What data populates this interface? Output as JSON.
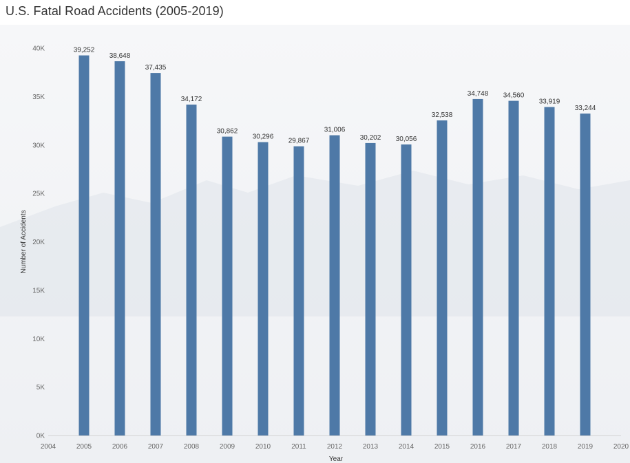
{
  "chart_data": {
    "type": "bar",
    "title": "U.S. Fatal Road Accidents (2005-2019)",
    "xlabel": "Year",
    "ylabel": "Number of Accidents",
    "x": [
      2005,
      2006,
      2007,
      2008,
      2009,
      2010,
      2011,
      2012,
      2013,
      2014,
      2015,
      2016,
      2017,
      2018,
      2019
    ],
    "values": [
      39252,
      38648,
      37435,
      34172,
      30862,
      30296,
      29867,
      31006,
      30202,
      30056,
      32538,
      34748,
      34560,
      33919,
      33244
    ],
    "data_labels": [
      "39,252",
      "38,648",
      "37,435",
      "34,172",
      "30,862",
      "30,296",
      "29,867",
      "31,006",
      "30,202",
      "30,056",
      "32,538",
      "34,748",
      "34,560",
      "33,919",
      "33,244"
    ],
    "xlim": [
      2004,
      2020
    ],
    "ylim": [
      0,
      40000
    ],
    "x_ticks": [
      "2004",
      "2005",
      "2006",
      "2007",
      "2008",
      "2009",
      "2010",
      "2011",
      "2012",
      "2013",
      "2014",
      "2015",
      "2016",
      "2017",
      "2018",
      "2019",
      "2020"
    ],
    "y_ticks": [
      {
        "value": 0,
        "label": "0K"
      },
      {
        "value": 5000,
        "label": "5K"
      },
      {
        "value": 10000,
        "label": "10K"
      },
      {
        "value": 15000,
        "label": "15K"
      },
      {
        "value": 20000,
        "label": "20K"
      },
      {
        "value": 25000,
        "label": "25K"
      },
      {
        "value": 30000,
        "label": "30K"
      },
      {
        "value": 35000,
        "label": "35K"
      },
      {
        "value": 40000,
        "label": "40K"
      }
    ],
    "bar_color": "#4e79a7",
    "grid": false,
    "legend": "none"
  }
}
